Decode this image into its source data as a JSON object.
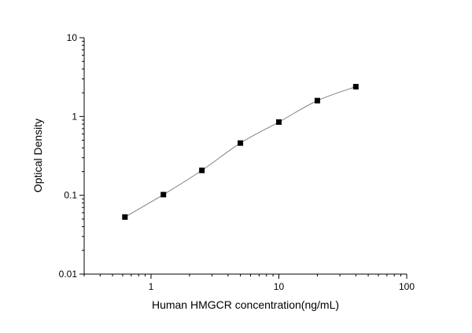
{
  "chart_data": {
    "type": "scatter",
    "title": "",
    "xlabel": "Human HMGCR concentration(ng/mL)",
    "ylabel": "Optical Density",
    "xscale": "log",
    "yscale": "log",
    "xlim": [
      0.3,
      100
    ],
    "ylim": [
      0.01,
      10
    ],
    "xticks": [
      1,
      10,
      100
    ],
    "xtick_labels": [
      "1",
      "10",
      "100"
    ],
    "yticks": [
      0.01,
      0.1,
      1,
      10
    ],
    "ytick_labels": [
      "0.01",
      "0.1",
      "1",
      "10"
    ],
    "grid": false,
    "legend": "none",
    "marker": "square",
    "fit_curve": true,
    "colors": {
      "points": "#000000",
      "curve": "#808080",
      "axes": "#000000"
    },
    "series": [
      {
        "x": [
          0.625,
          1.25,
          2.5,
          5,
          10,
          20,
          40
        ],
        "y": [
          0.053,
          0.102,
          0.207,
          0.46,
          0.85,
          1.59,
          2.39
        ]
      }
    ]
  }
}
